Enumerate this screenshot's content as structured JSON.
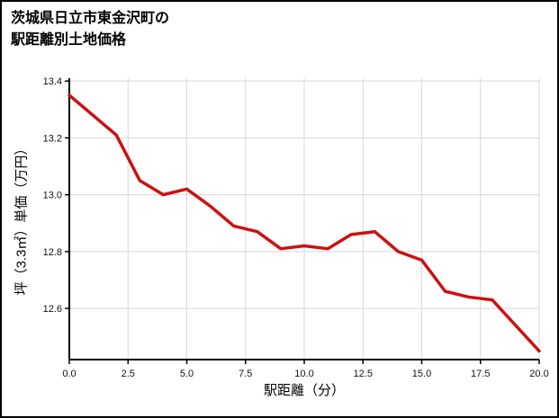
{
  "title": {
    "line1": "茨城県日立市東金沢町の",
    "line2": "駅距離別土地価格"
  },
  "chart_data": {
    "type": "line",
    "title": "茨城県日立市東金沢町の駅距離別土地価格",
    "xlabel": "駅距離（分）",
    "ylabel": "坪（3.3㎡）単価（万円）",
    "x": [
      0,
      1,
      2,
      3,
      4,
      5,
      6,
      7,
      8,
      9,
      10,
      11,
      12,
      13,
      14,
      15,
      16,
      17,
      18,
      19,
      20
    ],
    "y": [
      13.35,
      13.28,
      13.21,
      13.05,
      13.0,
      13.02,
      12.96,
      12.89,
      12.87,
      12.81,
      12.82,
      12.81,
      12.86,
      12.87,
      12.8,
      12.77,
      12.66,
      12.64,
      12.63,
      12.54,
      12.45
    ],
    "xlim": [
      0,
      20
    ],
    "ylim": [
      12.42,
      13.41
    ],
    "xticks": [
      0,
      2.5,
      5,
      7.5,
      10,
      12.5,
      15,
      17.5,
      20
    ],
    "xtick_labels": [
      "0.0",
      "2.5",
      "5.0",
      "7.5",
      "10.0",
      "12.5",
      "15.0",
      "17.5",
      "20.0"
    ],
    "yticks": [
      12.6,
      12.8,
      13.0,
      13.2,
      13.4
    ],
    "ytick_labels": [
      "12.6",
      "12.8",
      "13.0",
      "13.2",
      "13.4"
    ],
    "grid": true,
    "legend": "none",
    "line_color": "#cc1111",
    "grid_color": "#d8d8d8",
    "axis_color": "#000000",
    "tick_label_color": "#111111"
  }
}
